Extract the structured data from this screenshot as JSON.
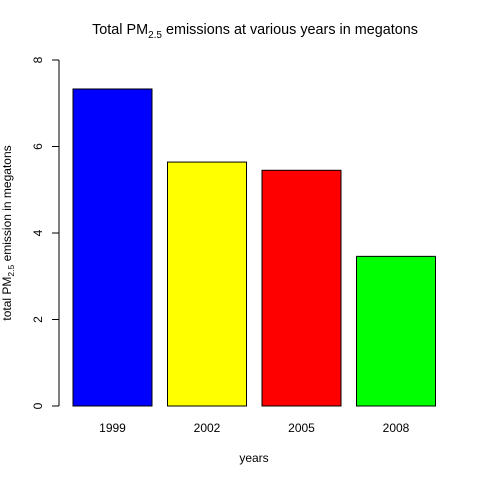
{
  "chart_data": {
    "type": "bar",
    "title": {
      "prefix": "Total PM",
      "subscript": "2.5",
      "suffix": " emissions at various years in megatons"
    },
    "xlabel": "years",
    "ylabel": {
      "prefix": "total PM",
      "subscript": "2.5",
      "suffix": " emission in megatons"
    },
    "categories": [
      "1999",
      "2002",
      "2005",
      "2008"
    ],
    "values": [
      7.33,
      5.64,
      5.45,
      3.46
    ],
    "colors": [
      "#0000ff",
      "#ffff00",
      "#ff0000",
      "#00ff00"
    ],
    "ylim": [
      0,
      8
    ],
    "yticks": [
      0,
      2,
      4,
      6,
      8
    ],
    "grid": false,
    "legend": "none"
  }
}
